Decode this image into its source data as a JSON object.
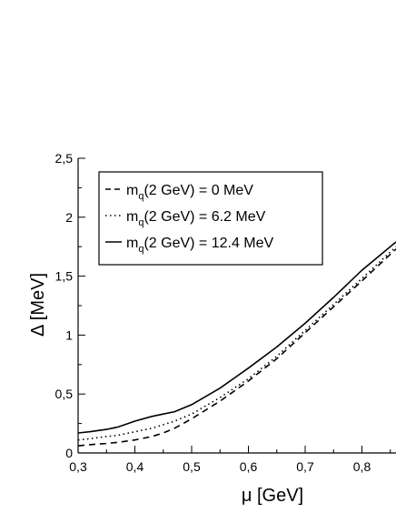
{
  "chart_data": {
    "type": "line",
    "xlabel": "μ [GeV]",
    "ylabel": "Δ [MeV]",
    "xlim": [
      0.3,
      0.86
    ],
    "ylim": [
      0,
      2.5
    ],
    "x_ticks": [
      "0,3",
      "0,4",
      "0,5",
      "0,6",
      "0,7",
      "0,8"
    ],
    "y_ticks": [
      "0",
      "0,5",
      "1",
      "1,5",
      "2",
      "2,5"
    ],
    "grid": false,
    "legend_position": "top-left",
    "series": [
      {
        "name": "m_q(2 GeV) = 0 MeV",
        "legend": {
          "prefix": "m",
          "sub": "q",
          "suffix": "(2 GeV) = 0 MeV"
        },
        "style": "dashed",
        "x": [
          0.3,
          0.32,
          0.35,
          0.37,
          0.4,
          0.43,
          0.45,
          0.47,
          0.5,
          0.55,
          0.6,
          0.65,
          0.7,
          0.75,
          0.8,
          0.86
        ],
        "y": [
          0.06,
          0.07,
          0.08,
          0.09,
          0.11,
          0.14,
          0.17,
          0.21,
          0.29,
          0.44,
          0.61,
          0.8,
          1.02,
          1.24,
          1.46,
          1.73
        ]
      },
      {
        "name": "m_q(2 GeV) = 6.2 MeV",
        "legend": {
          "prefix": "m",
          "sub": "q",
          "suffix": "(2 GeV) = 6.2 MeV"
        },
        "style": "dotted",
        "x": [
          0.3,
          0.32,
          0.35,
          0.37,
          0.4,
          0.43,
          0.45,
          0.47,
          0.5,
          0.55,
          0.6,
          0.65,
          0.7,
          0.75,
          0.8,
          0.86
        ],
        "y": [
          0.11,
          0.12,
          0.14,
          0.15,
          0.18,
          0.21,
          0.24,
          0.27,
          0.33,
          0.47,
          0.63,
          0.82,
          1.04,
          1.26,
          1.48,
          1.75
        ]
      },
      {
        "name": "m_q(2 GeV) = 12.4 MeV",
        "legend": {
          "prefix": "m",
          "sub": "q",
          "suffix": "(2 GeV) = 12.4 MeV"
        },
        "style": "solid",
        "x": [
          0.3,
          0.32,
          0.35,
          0.37,
          0.4,
          0.43,
          0.45,
          0.47,
          0.5,
          0.55,
          0.6,
          0.65,
          0.7,
          0.75,
          0.8,
          0.86
        ],
        "y": [
          0.17,
          0.18,
          0.2,
          0.22,
          0.27,
          0.31,
          0.33,
          0.35,
          0.41,
          0.55,
          0.72,
          0.9,
          1.1,
          1.32,
          1.55,
          1.79
        ]
      }
    ]
  }
}
